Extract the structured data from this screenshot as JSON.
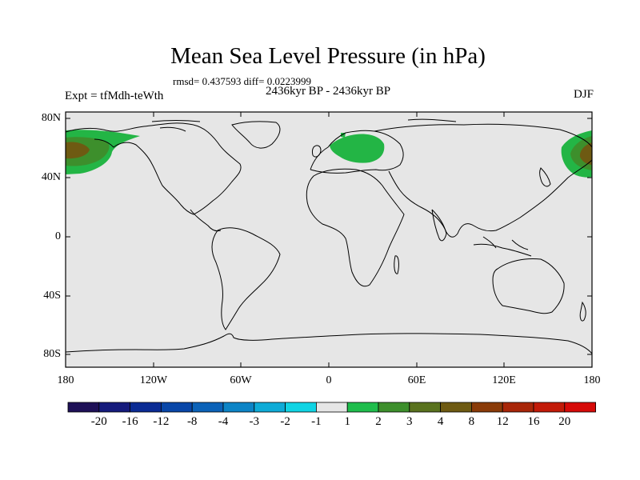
{
  "title": "Mean Sea Level Pressure (in hPa)",
  "stats": "rmsd= 0.437593 diff= 0.0223999",
  "experiment": "Expt = tfMdh-teWth",
  "period": "2436kyr BP - 2436kyr BP",
  "season": "DJF",
  "lat_labels": [
    "80N",
    "40N",
    "0",
    "40S",
    "80S"
  ],
  "lon_labels": [
    "180",
    "120W",
    "60W",
    "0",
    "60E",
    "120E",
    "180"
  ],
  "colorbar": {
    "labels": [
      "-20",
      "-16",
      "-12",
      "-8",
      "-4",
      "-3",
      "-2",
      "-1",
      "1",
      "2",
      "3",
      "4",
      "8",
      "12",
      "16",
      "20"
    ],
    "colors": [
      "#1e1057",
      "#151b7c",
      "#0a2b94",
      "#0846a8",
      "#0b62b8",
      "#0c84c6",
      "#0eabd7",
      "#10d4e4",
      "#e6e6e6",
      "#1fbd4c",
      "#3d8f2c",
      "#59721e",
      "#6e5a12",
      "#8a3b08",
      "#a82608",
      "#c21a08",
      "#d60a08"
    ]
  },
  "colors": {
    "background": "#e6e6e6",
    "coast": "#000000",
    "anomaly_low": "#23b545",
    "anomaly_high": "#6e5a12"
  },
  "chart_data": {
    "type": "heatmap",
    "title": "Mean Sea Level Pressure (in hPa)",
    "projection": "cylindrical equidistant",
    "xlim": [
      -180,
      180
    ],
    "ylim": [
      -90,
      90
    ],
    "levels": [
      -20,
      -16,
      -12,
      -8,
      -4,
      -3,
      -2,
      -1,
      1,
      2,
      3,
      4,
      8,
      12,
      16,
      20
    ],
    "anomaly_regions": [
      {
        "name": "North Pacific (west of 180)",
        "lon_center": -175,
        "lat_center": 55,
        "band": "1 to 3",
        "peak_band": "3 to 4"
      },
      {
        "name": "North Pacific (east of 180)",
        "lon_center": 178,
        "lat_center": 54,
        "band": "1 to 3",
        "peak_band": "3 to 4"
      },
      {
        "name": "Scandinavia",
        "lon_center": 20,
        "lat_center": 62,
        "band": "1 to 2"
      }
    ]
  }
}
